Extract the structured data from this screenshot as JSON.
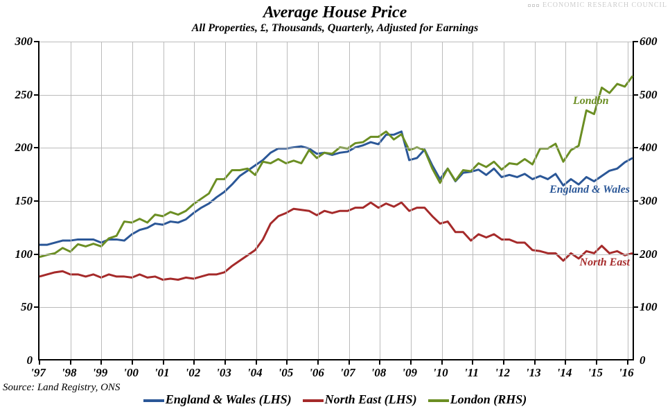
{
  "title": "Average House Price",
  "subtitle": "All Properties, £, Thousands, Quarterly, Adjusted for Earnings",
  "source": "Source: Land Registry, ONS",
  "watermark": "ECONOMIC RESEARCH COUNCIL",
  "chart": {
    "type": "line",
    "background_color": "#ffffff",
    "grid_color": "#bbbbbb",
    "title_fontsize": 24,
    "subtitle_fontsize": 16,
    "axis_label_fontsize": 17,
    "legend_fontsize": 18,
    "line_width": 3,
    "x": {
      "ticks": [
        "'97",
        "'98",
        "'99",
        "'00",
        "'01",
        "'02",
        "'03",
        "'04",
        "'05",
        "'06",
        "'07",
        "'08",
        "'09",
        "'10",
        "'11",
        "'12",
        "'13",
        "'14",
        "'15",
        "'16"
      ],
      "min": 0,
      "max": 77
    },
    "y_left": {
      "min": 0,
      "max": 300,
      "step": 50,
      "ticks": [
        0,
        50,
        100,
        150,
        200,
        250,
        300
      ]
    },
    "y_right": {
      "min": 0,
      "max": 600,
      "step": 100,
      "ticks": [
        0,
        100,
        200,
        300,
        400,
        500,
        600
      ]
    },
    "series": [
      {
        "name": "England & Wales",
        "color": "#2b5797",
        "axis": "left",
        "legend": "England & Wales (LHS)",
        "label_pos": {
          "x": 860,
          "y": 205,
          "anchor": "end"
        },
        "values": [
          108,
          108,
          110,
          112,
          112,
          113,
          113,
          113,
          110,
          113,
          113,
          112,
          118,
          122,
          124,
          128,
          127,
          130,
          129,
          132,
          138,
          143,
          147,
          153,
          158,
          165,
          173,
          178,
          183,
          188,
          195,
          199,
          199,
          200,
          201,
          199,
          194,
          195,
          193,
          195,
          196,
          200,
          202,
          205,
          203,
          212,
          212,
          215,
          188,
          190,
          198,
          183,
          170,
          180,
          168,
          176,
          177,
          179,
          174,
          180,
          172,
          174,
          172,
          175,
          170,
          173,
          170,
          175,
          164,
          170,
          165,
          172,
          168,
          173,
          178,
          180,
          186,
          190
        ]
      },
      {
        "name": "North East",
        "color": "#a52a2a",
        "axis": "left",
        "legend": "North East (LHS)",
        "label_pos": {
          "x": 860,
          "y": 310,
          "anchor": "end"
        },
        "values": [
          78,
          80,
          82,
          83,
          80,
          80,
          78,
          80,
          77,
          80,
          78,
          78,
          77,
          80,
          77,
          78,
          75,
          76,
          75,
          77,
          76,
          78,
          80,
          80,
          82,
          88,
          93,
          98,
          103,
          113,
          128,
          135,
          138,
          142,
          141,
          140,
          136,
          140,
          138,
          140,
          140,
          143,
          143,
          148,
          143,
          147,
          144,
          148,
          140,
          143,
          143,
          135,
          128,
          130,
          120,
          120,
          112,
          118,
          115,
          118,
          113,
          113,
          110,
          110,
          103,
          102,
          100,
          100,
          93,
          100,
          95,
          102,
          100,
          107,
          100,
          102,
          98,
          100
        ]
      },
      {
        "name": "London",
        "color": "#6b8e23",
        "axis": "right",
        "legend": "London (RHS)",
        "label_pos": {
          "x": 770,
          "y": 77,
          "anchor": "start"
        },
        "values": [
          193,
          197,
          200,
          210,
          203,
          217,
          213,
          218,
          213,
          228,
          233,
          260,
          258,
          265,
          258,
          273,
          270,
          278,
          273,
          280,
          293,
          303,
          313,
          340,
          340,
          357,
          357,
          360,
          348,
          373,
          370,
          378,
          370,
          375,
          370,
          395,
          380,
          390,
          388,
          400,
          398,
          408,
          410,
          420,
          420,
          430,
          415,
          425,
          395,
          400,
          395,
          360,
          333,
          360,
          337,
          357,
          355,
          370,
          363,
          373,
          358,
          370,
          368,
          378,
          368,
          398,
          398,
          407,
          373,
          395,
          403,
          470,
          463,
          513,
          503,
          520,
          515,
          535
        ]
      }
    ]
  },
  "colors": {
    "england_wales": "#2b5797",
    "north_east": "#a52a2a",
    "london": "#6b8e23"
  }
}
